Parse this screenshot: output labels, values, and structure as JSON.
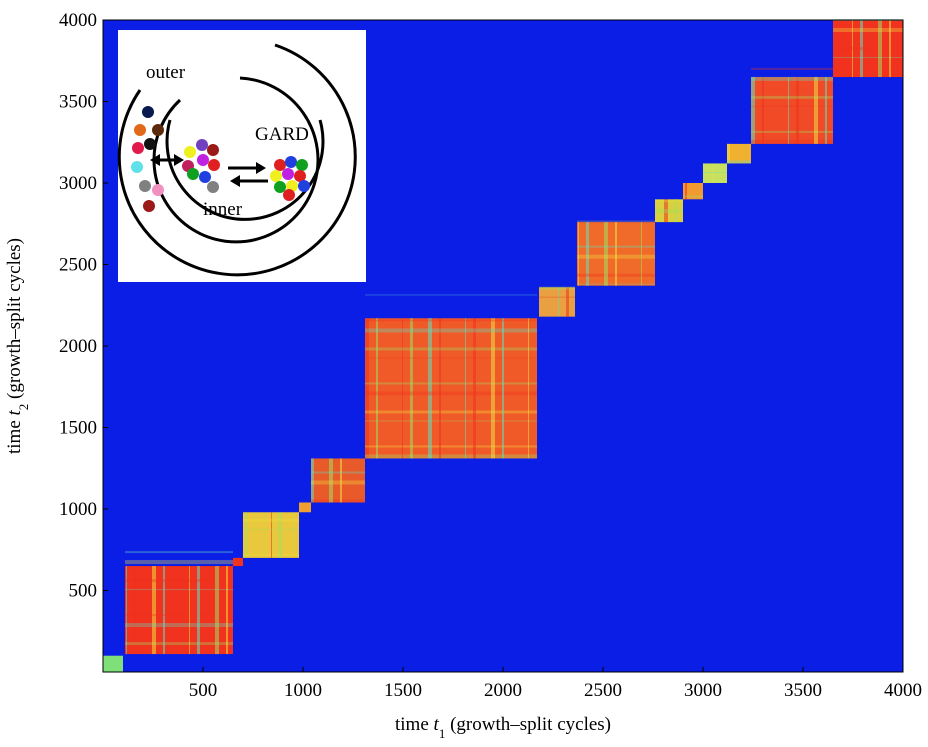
{
  "chart_data": {
    "type": "heatmap",
    "xlabel": {
      "pre": "time",
      "var": "t",
      "sub": "1",
      "post": "(growth–split cycles)"
    },
    "ylabel": {
      "pre": "time",
      "var": "t",
      "sub": "2",
      "post": "(growth–split cycles)"
    },
    "xlim": [
      0,
      4000
    ],
    "ylim": [
      0,
      4000
    ],
    "xticks": [
      500,
      1000,
      1500,
      2000,
      2500,
      3000,
      3500,
      4000
    ],
    "yticks": [
      500,
      1000,
      1500,
      2000,
      2500,
      3000,
      3500,
      4000
    ],
    "background": "#0a1ee6",
    "blocks": [
      {
        "start": 0,
        "end": 100,
        "color": "#7fe07a"
      },
      {
        "start": 110,
        "end": 650,
        "color": "#f0321e"
      },
      {
        "start": 650,
        "end": 700,
        "color": "#f0321e"
      },
      {
        "start": 700,
        "end": 980,
        "color": "#e8c83c"
      },
      {
        "start": 980,
        "end": 1040,
        "color": "#f0a030"
      },
      {
        "start": 1040,
        "end": 1310,
        "color": "#e85a2a"
      },
      {
        "start": 1310,
        "end": 2170,
        "color": "#f05a28"
      },
      {
        "start": 2180,
        "end": 2360,
        "color": "#e8a040"
      },
      {
        "start": 2370,
        "end": 2760,
        "color": "#f06a2a"
      },
      {
        "start": 2760,
        "end": 2900,
        "color": "#d8d040"
      },
      {
        "start": 2900,
        "end": 3000,
        "color": "#f09a30"
      },
      {
        "start": 3000,
        "end": 3120,
        "color": "#c8e060"
      },
      {
        "start": 3120,
        "end": 3240,
        "color": "#f0b030"
      },
      {
        "start": 3240,
        "end": 3650,
        "color": "#f04a26"
      },
      {
        "start": 3650,
        "end": 4000,
        "color": "#f0321e"
      }
    ]
  },
  "inset": {
    "labels": {
      "outer": "outer",
      "inner": "inner",
      "gard": "GARD"
    }
  }
}
